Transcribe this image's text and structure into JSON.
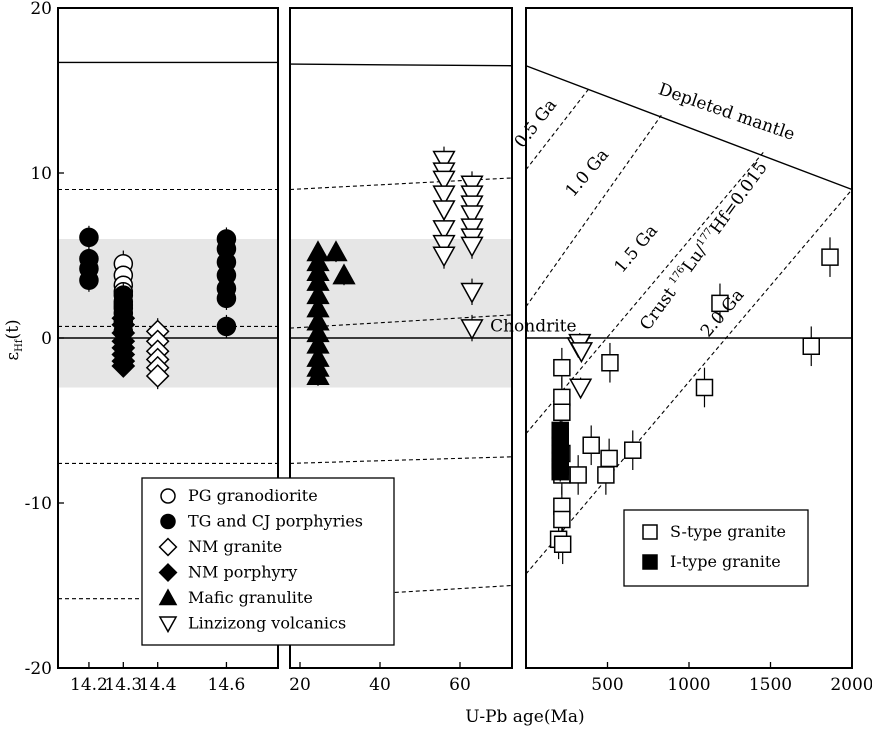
{
  "chart_data": {
    "type": "scatter",
    "xlabel": "U-Pb age(Ma)",
    "ylabel_main": "ε",
    "ylabel_sub": "Hf",
    "ylabel_rest": "(t)",
    "ylim": [
      -20,
      20
    ],
    "y_ticks": [
      "20",
      "10",
      "0",
      "-10",
      "-20"
    ],
    "panels": [
      {
        "id": "panel-1",
        "xlim": [
          14.11,
          14.75
        ],
        "x_ticks": [
          {
            "v": 14.2,
            "label": "14.2"
          },
          {
            "v": 14.3,
            "label": "14.3"
          },
          {
            "v": 14.4,
            "label": "14.4"
          },
          {
            "v": 14.6,
            "label": "14.6"
          }
        ],
        "band": [
          -3,
          6
        ],
        "lines": [
          {
            "kind": "solid",
            "p": [
              [
                14.11,
                16.7
              ],
              [
                14.75,
                16.7
              ]
            ]
          },
          {
            "kind": "dashed",
            "p": [
              [
                14.11,
                9.0
              ],
              [
                14.75,
                9.0
              ]
            ]
          },
          {
            "kind": "dashed",
            "p": [
              [
                14.11,
                0.7
              ],
              [
                14.75,
                0.7
              ]
            ]
          },
          {
            "kind": "solid",
            "p": [
              [
                14.11,
                0
              ],
              [
                14.75,
                0
              ]
            ]
          },
          {
            "kind": "dashed",
            "p": [
              [
                14.11,
                -7.6
              ],
              [
                14.75,
                -7.6
              ]
            ]
          },
          {
            "kind": "dashed",
            "p": [
              [
                14.11,
                -15.8
              ],
              [
                14.75,
                -15.8
              ]
            ]
          }
        ],
        "series": [
          {
            "name": "PG granodiorite",
            "marker": "circle-open",
            "x": 14.3,
            "y": [
              4.5,
              3.8,
              3.2,
              2.8,
              2.2,
              1.8
            ],
            "err": 0.8
          },
          {
            "name": "TG and CJ porphyries",
            "marker": "circle-filled",
            "points": [
              [
                14.2,
                6.1
              ],
              [
                14.2,
                4.8
              ],
              [
                14.2,
                4.2
              ],
              [
                14.2,
                3.5
              ],
              [
                14.3,
                2.6
              ],
              [
                14.3,
                2.0
              ],
              [
                14.3,
                1.5
              ],
              [
                14.3,
                1.0
              ],
              [
                14.3,
                0.4
              ],
              [
                14.6,
                6.0
              ],
              [
                14.6,
                5.4
              ],
              [
                14.6,
                4.6
              ],
              [
                14.6,
                3.8
              ],
              [
                14.6,
                3.0
              ],
              [
                14.6,
                2.4
              ],
              [
                14.6,
                0.7
              ]
            ],
            "err": 0.7
          },
          {
            "name": "NM granite",
            "marker": "diamond-open",
            "x": 14.4,
            "y": [
              0.4,
              -0.2,
              -0.8,
              -1.3,
              -1.8,
              -2.3
            ],
            "err": 0.8
          },
          {
            "name": "NM porphyry",
            "marker": "diamond-filled",
            "x": 14.3,
            "y": [
              1.2,
              0.8,
              0.3,
              -0.2,
              -0.6,
              -1.0,
              -1.4,
              -1.7
            ],
            "err": 0.6
          }
        ]
      },
      {
        "id": "panel-2",
        "xlim": [
          17.5,
          73
        ],
        "x_ticks": [
          {
            "v": 20,
            "label": "20"
          },
          {
            "v": 40,
            "label": "40"
          },
          {
            "v": 60,
            "label": "60"
          }
        ],
        "band": [
          -3,
          6
        ],
        "lines": [
          {
            "kind": "solid",
            "p": [
              [
                17.5,
                16.6
              ],
              [
                73,
                16.5
              ]
            ]
          },
          {
            "kind": "dashed",
            "p": [
              [
                17.5,
                9.0
              ],
              [
                73,
                9.7
              ]
            ]
          },
          {
            "kind": "dashed",
            "p": [
              [
                17.5,
                0.6
              ],
              [
                73,
                1.4
              ]
            ]
          },
          {
            "kind": "solid",
            "p": [
              [
                17.5,
                0
              ],
              [
                73,
                0
              ]
            ]
          },
          {
            "kind": "dashed",
            "p": [
              [
                17.5,
                -7.6
              ],
              [
                73,
                -7.2
              ]
            ]
          },
          {
            "kind": "dashed",
            "p": [
              [
                17.5,
                -15.8
              ],
              [
                73,
                -15.0
              ]
            ]
          }
        ],
        "series": [
          {
            "name": "Mafic granulite",
            "marker": "triangle-filled",
            "points": [
              [
                24.5,
                5.2
              ],
              [
                24.5,
                4.6
              ],
              [
                24.5,
                4.0
              ],
              [
                24.5,
                3.4
              ],
              [
                24.5,
                2.6
              ],
              [
                24.5,
                1.8
              ],
              [
                24.5,
                1.0
              ],
              [
                24.5,
                0.3
              ],
              [
                24.5,
                -0.4
              ],
              [
                24.5,
                -1.2
              ],
              [
                24.5,
                -1.8
              ],
              [
                24.5,
                -2.3
              ],
              [
                29,
                5.2
              ],
              [
                31,
                3.8
              ]
            ],
            "err": 0.6
          },
          {
            "name": "Linzizong volcanics",
            "marker": "triangle-open",
            "points": [
              [
                56,
                10.8
              ],
              [
                56,
                10.1
              ],
              [
                56,
                9.6
              ],
              [
                56,
                8.7
              ],
              [
                56,
                7.8
              ],
              [
                56,
                6.6
              ],
              [
                56,
                5.7
              ],
              [
                56,
                5.0
              ],
              [
                63,
                9.3
              ],
              [
                63,
                8.7
              ],
              [
                63,
                8.1
              ],
              [
                63,
                7.5
              ],
              [
                63,
                6.7
              ],
              [
                63,
                6.1
              ],
              [
                63,
                5.6
              ],
              [
                63,
                2.8
              ],
              [
                63,
                0.6
              ]
            ],
            "err": 0.8
          }
        ]
      },
      {
        "id": "panel-3",
        "xlim": [
          0,
          2000
        ],
        "x_ticks": [
          {
            "v": 500,
            "label": "500"
          },
          {
            "v": 1000,
            "label": "1000"
          },
          {
            "v": 1500,
            "label": "1500"
          },
          {
            "v": 2000,
            "label": "2000"
          }
        ],
        "lines": [
          {
            "kind": "solid",
            "p": [
              [
                0,
                16.5
              ],
              [
                2000,
                9.0
              ]
            ]
          },
          {
            "kind": "solid",
            "p": [
              [
                0,
                0
              ],
              [
                2000,
                0
              ]
            ]
          },
          {
            "kind": "dashed",
            "p": [
              [
                0,
                10.2
              ],
              [
                385,
                15.1
              ]
            ]
          },
          {
            "kind": "dashed",
            "p": [
              [
                0,
                1.9
              ],
              [
                830,
                13.5
              ]
            ]
          },
          {
            "kind": "dashed",
            "p": [
              [
                0,
                -5.8
              ],
              [
                1460,
                11.3
              ]
            ]
          },
          {
            "kind": "dashed",
            "p": [
              [
                0,
                -14.3
              ],
              [
                2000,
                9.0
              ]
            ]
          }
        ],
        "series": [
          {
            "name": "S-type granite",
            "marker": "square-open",
            "points": [
              [
                220,
                -1.8
              ],
              [
                220,
                -3.6
              ],
              [
                220,
                -4.5
              ],
              [
                220,
                -7.0
              ],
              [
                220,
                -8.3
              ],
              [
                220,
                -10.2
              ],
              [
                220,
                -11.0
              ],
              [
                200,
                -12.2
              ],
              [
                225,
                -12.5
              ],
              [
                320,
                -8.3
              ],
              [
                400,
                -6.5
              ],
              [
                490,
                -8.3
              ],
              [
                510,
                -7.3
              ],
              [
                515,
                -1.5
              ],
              [
                655,
                -6.8
              ],
              [
                1095,
                -3.0
              ],
              [
                1190,
                2.1
              ],
              [
                1750,
                -0.5
              ],
              [
                1865,
                4.9
              ]
            ],
            "err": 1.2
          },
          {
            "name": "I-type granite",
            "marker": "square-filled",
            "points": [
              [
                210,
                -5.6
              ],
              [
                210,
                -6.0
              ],
              [
                210,
                -6.5
              ],
              [
                210,
                -7.0
              ],
              [
                210,
                -7.4
              ],
              [
                210,
                -7.8
              ],
              [
                210,
                -8.1
              ]
            ],
            "err": 0.6
          },
          {
            "name": "Linzizong volcanics",
            "marker": "triangle-open",
            "points": [
              [
                320,
                -0.5
              ],
              [
                330,
                -0.3
              ],
              [
                340,
                -0.8
              ],
              [
                335,
                -3.0
              ]
            ],
            "err": 0.6
          }
        ]
      }
    ],
    "annotations": [
      {
        "text": "0.5 Ga",
        "panel": 2,
        "x": 85,
        "y": 12.8,
        "angle": -52
      },
      {
        "text": "1.0 Ga",
        "panel": 2,
        "x": 400,
        "y": 9.8,
        "angle": -50
      },
      {
        "text": "1.5 Ga",
        "panel": 2,
        "x": 700,
        "y": 5.2,
        "angle": -50
      },
      {
        "text": "2.0 Ga",
        "panel": 2,
        "x": 1230,
        "y": 1.3,
        "angle": -50
      },
      {
        "text": "Depleted mantle",
        "panel": 2,
        "x": 1220,
        "y": 13.4,
        "angle": 19
      },
      {
        "text": "Chondrite",
        "panel": 2,
        "x": 45,
        "y": 0.4,
        "angle": 0
      }
    ],
    "crust_label": {
      "prefix": "Crust ",
      "sup1": "176",
      "mid": "Lu/",
      "sup2": "177",
      "end": "Hf=0.015",
      "panel": 2,
      "x": 750,
      "y": 0.4,
      "angle": -54
    },
    "legends": [
      {
        "panel": 0,
        "entries": [
          {
            "marker": "circle-open",
            "label": "PG granodiorite"
          },
          {
            "marker": "circle-filled",
            "label": "TG and CJ porphyries"
          },
          {
            "marker": "diamond-open",
            "label": "NM granite"
          },
          {
            "marker": "diamond-filled",
            "label": "NM porphyry"
          },
          {
            "marker": "triangle-filled",
            "label": "Mafic granulite"
          },
          {
            "marker": "triangle-open",
            "label": "Linzizong volcanics"
          }
        ]
      },
      {
        "panel": 2,
        "entries": [
          {
            "marker": "square-open",
            "label": "S-type granite"
          },
          {
            "marker": "square-filled",
            "label": "I-type granite"
          }
        ]
      }
    ]
  }
}
